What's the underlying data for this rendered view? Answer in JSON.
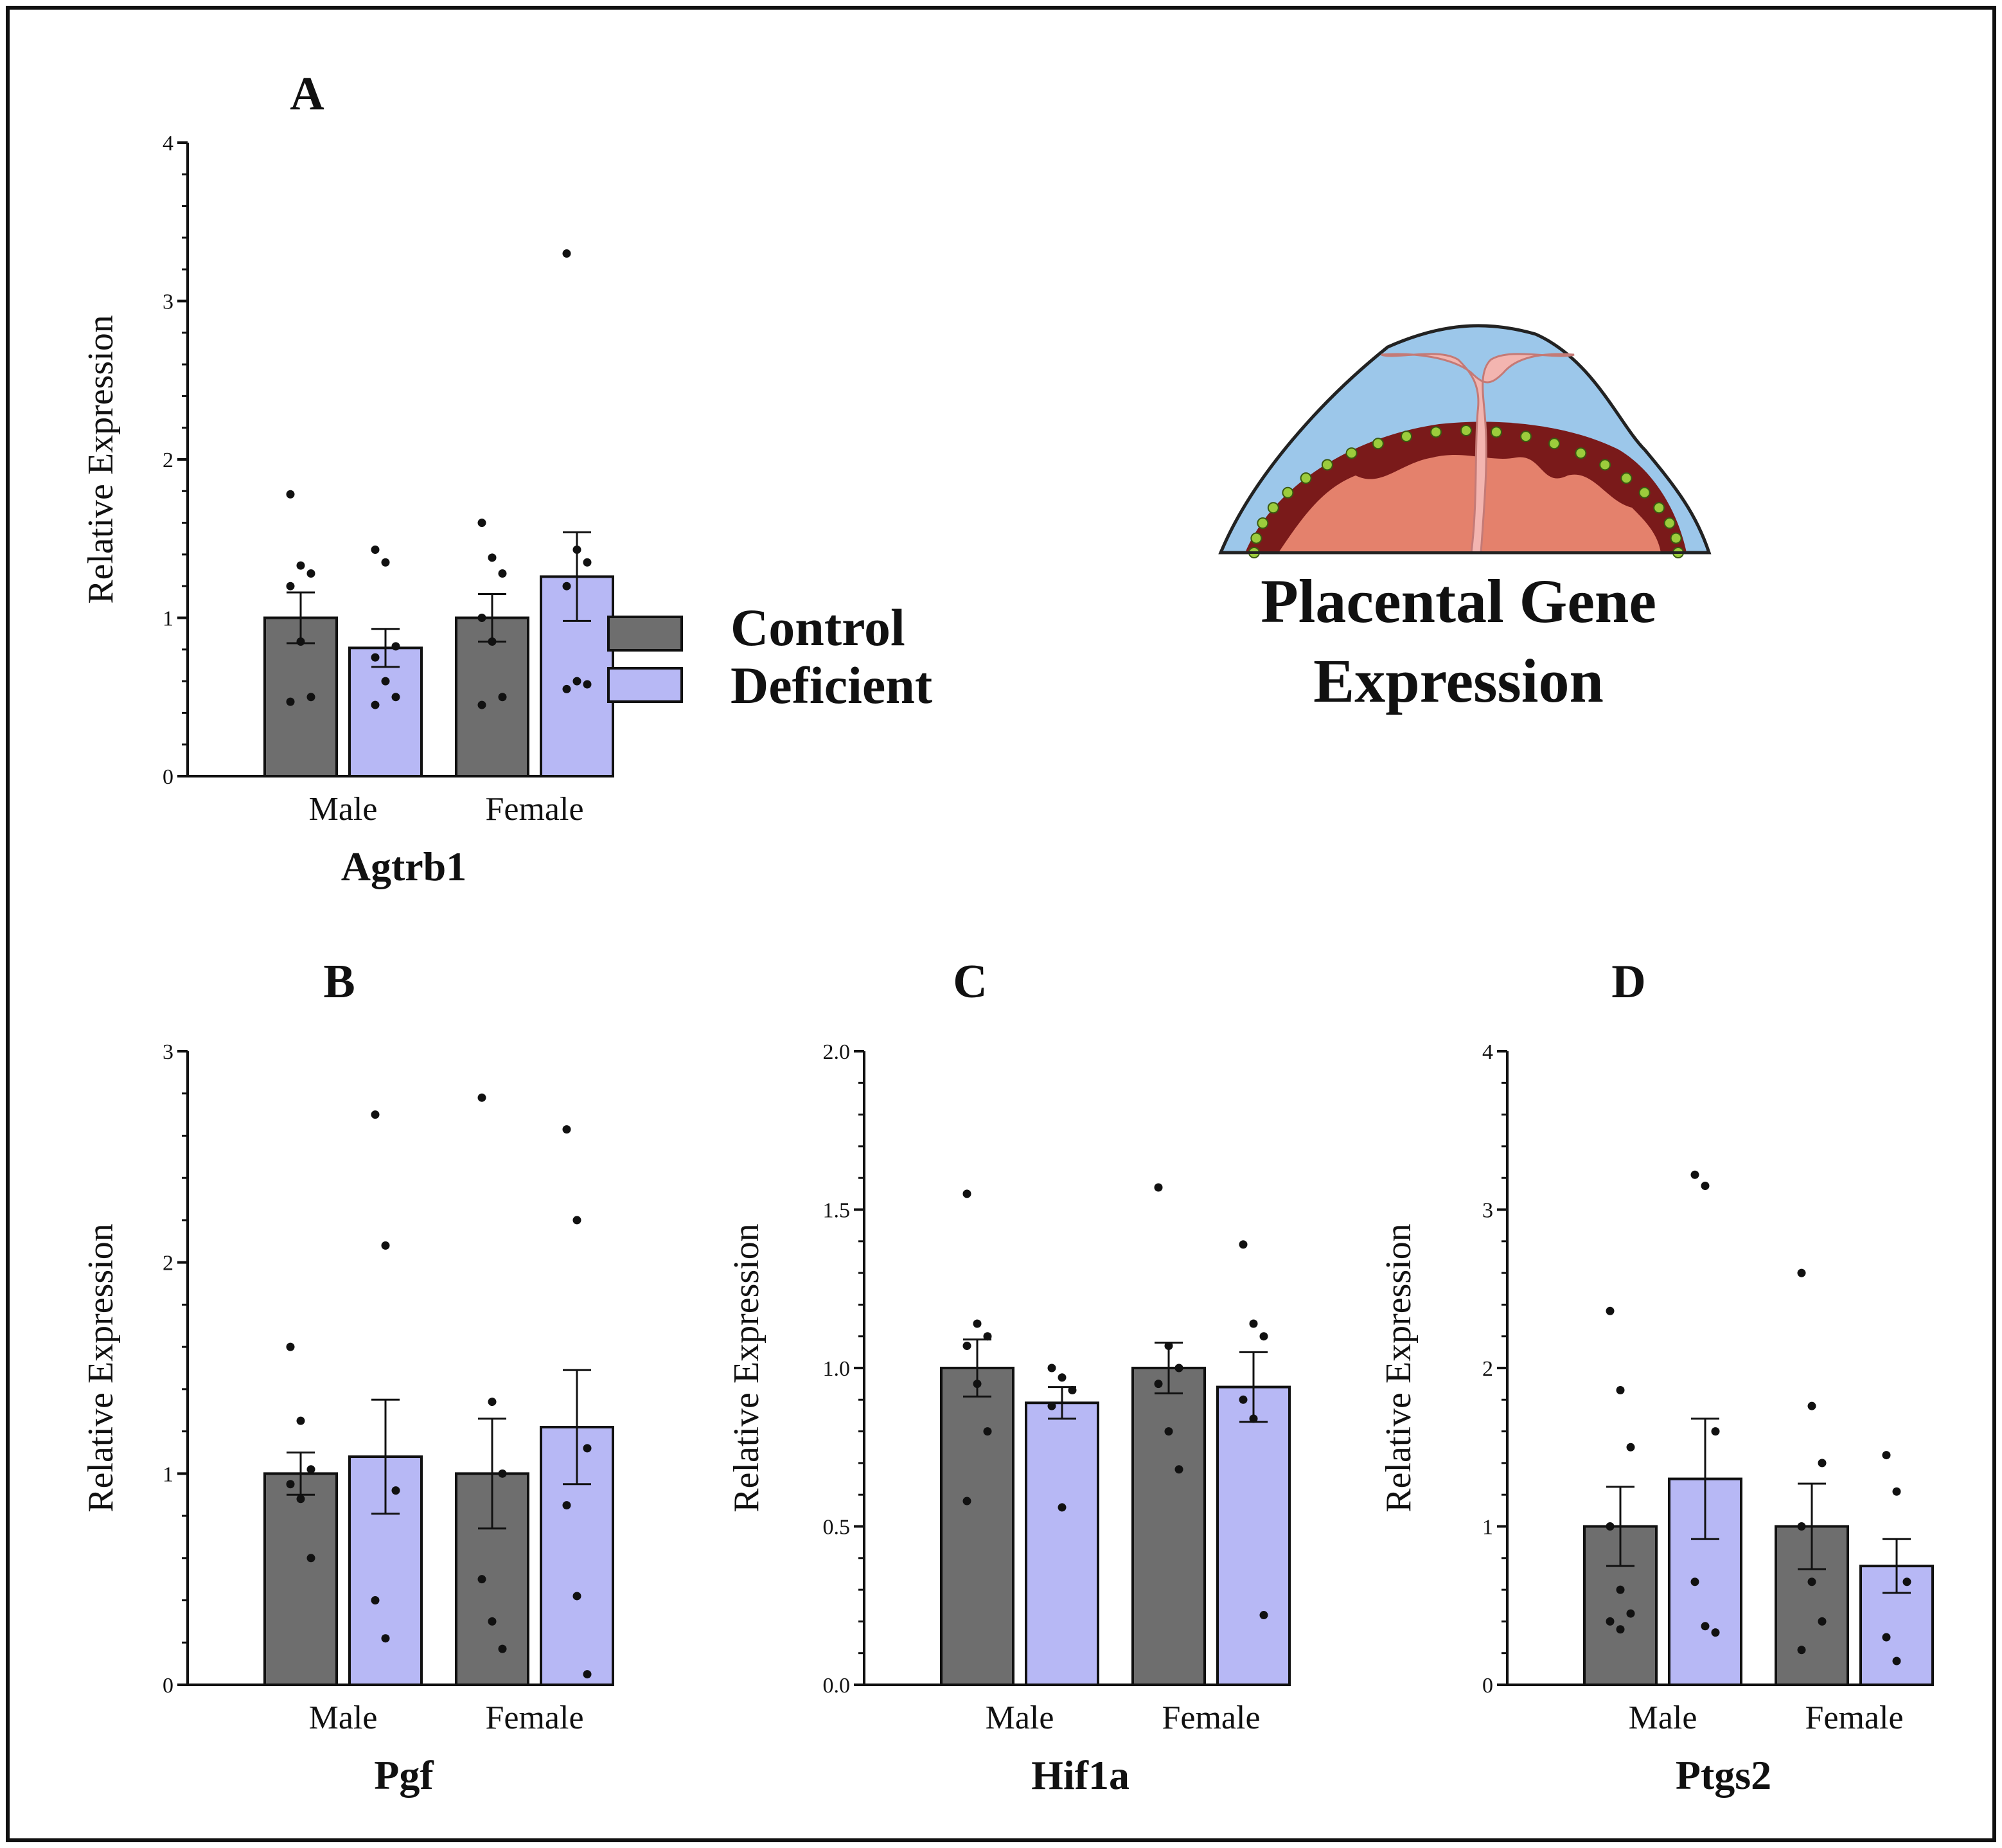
{
  "figure": {
    "title_line1": "Placental Gene",
    "title_line2": "Expression",
    "legend": [
      {
        "label": "Control",
        "color": "#6e6e6e"
      },
      {
        "label": "Deficient",
        "color": "#b7b8f5"
      }
    ],
    "placenta_icon_name": "placenta-illustration-icon",
    "colors": {
      "control": "#6e6e6e",
      "deficient": "#b7b8f5",
      "axis": "#111111"
    }
  },
  "chart_data": [
    {
      "type": "bar",
      "panel": "A",
      "gene": "Agtrb1",
      "categories": [
        "Male",
        "Female"
      ],
      "ylabel": "Relative Expression",
      "ylim": [
        0,
        4
      ],
      "yticks": [
        "0",
        "1",
        "2",
        "3",
        "4"
      ],
      "ytick_values": [
        0,
        1,
        2,
        3,
        4
      ],
      "minor_ticks_per_major": 5,
      "series": [
        {
          "name": "Control",
          "values": [
            1.0,
            1.0
          ],
          "sem": [
            0.16,
            0.15
          ],
          "points": [
            [
              1.78,
              1.33,
              1.28,
              1.2,
              0.85,
              0.5,
              0.47
            ],
            [
              1.6,
              1.38,
              1.28,
              1.0,
              0.85,
              0.5,
              0.45
            ]
          ]
        },
        {
          "name": "Deficient",
          "values": [
            0.81,
            1.26
          ],
          "sem": [
            0.12,
            0.28
          ],
          "points": [
            [
              1.43,
              1.35,
              0.82,
              0.75,
              0.6,
              0.5,
              0.45
            ],
            [
              3.3,
              1.43,
              1.35,
              1.2,
              0.6,
              0.58,
              0.55
            ]
          ]
        }
      ]
    },
    {
      "type": "bar",
      "panel": "B",
      "gene": "Pgf",
      "categories": [
        "Male",
        "Female"
      ],
      "ylabel": "Relative Expression",
      "ylim": [
        0,
        3
      ],
      "yticks": [
        "0",
        "1",
        "2",
        "3"
      ],
      "ytick_values": [
        0,
        1,
        2,
        3
      ],
      "minor_ticks_per_major": 5,
      "series": [
        {
          "name": "Control",
          "values": [
            1.0,
            1.0
          ],
          "sem": [
            0.1,
            0.26
          ],
          "points": [
            [
              1.6,
              1.25,
              1.02,
              0.95,
              0.88,
              0.6
            ],
            [
              2.78,
              1.34,
              1.0,
              0.5,
              0.3,
              0.17
            ]
          ]
        },
        {
          "name": "Deficient",
          "values": [
            1.08,
            1.22
          ],
          "sem": [
            0.27,
            0.27
          ],
          "points": [
            [
              2.7,
              2.08,
              0.92,
              0.4,
              0.22
            ],
            [
              2.63,
              2.2,
              1.12,
              0.85,
              0.42,
              0.05
            ]
          ]
        }
      ]
    },
    {
      "type": "bar",
      "panel": "C",
      "gene": "Hif1a",
      "categories": [
        "Male",
        "Female"
      ],
      "ylabel": "Relative Expression",
      "ylim": [
        0,
        2
      ],
      "yticks": [
        "0.0",
        "0.5",
        "1.0",
        "1.5",
        "2.0"
      ],
      "ytick_values": [
        0,
        0.5,
        1.0,
        1.5,
        2.0
      ],
      "minor_ticks_per_major": 5,
      "series": [
        {
          "name": "Control",
          "values": [
            1.0,
            1.0
          ],
          "sem": [
            0.09,
            0.08
          ],
          "points": [
            [
              1.55,
              1.14,
              1.1,
              1.07,
              0.95,
              0.8,
              0.58
            ],
            [
              1.57,
              1.07,
              1.0,
              0.95,
              0.8,
              0.68
            ]
          ]
        },
        {
          "name": "Deficient",
          "values": [
            0.89,
            0.94
          ],
          "sem": [
            0.05,
            0.11
          ],
          "points": [
            [
              1.0,
              0.97,
              0.93,
              0.88,
              0.56
            ],
            [
              1.39,
              1.14,
              1.1,
              0.9,
              0.84,
              0.22
            ]
          ]
        }
      ]
    },
    {
      "type": "bar",
      "panel": "D",
      "gene": "Ptgs2",
      "categories": [
        "Male",
        "Female"
      ],
      "ylabel": "Relative Expression",
      "ylim": [
        0,
        4
      ],
      "yticks": [
        "0",
        "1",
        "2",
        "3",
        "4"
      ],
      "ytick_values": [
        0,
        1,
        2,
        3,
        4
      ],
      "minor_ticks_per_major": 5,
      "series": [
        {
          "name": "Control",
          "values": [
            1.0,
            1.0
          ],
          "sem": [
            0.25,
            0.27
          ],
          "points": [
            [
              2.36,
              1.86,
              1.5,
              1.0,
              0.6,
              0.45,
              0.4,
              0.35
            ],
            [
              2.6,
              1.76,
              1.4,
              1.0,
              0.65,
              0.4,
              0.22
            ]
          ]
        },
        {
          "name": "Deficient",
          "values": [
            1.3,
            0.75
          ],
          "sem": [
            0.38,
            0.17
          ],
          "points": [
            [
              3.22,
              3.15,
              1.6,
              0.65,
              0.37,
              0.33
            ],
            [
              1.45,
              1.22,
              0.65,
              0.3,
              0.15
            ]
          ]
        }
      ]
    }
  ]
}
